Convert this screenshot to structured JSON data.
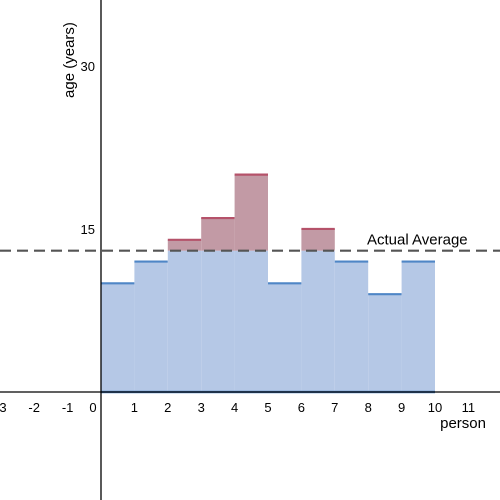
{
  "chart_data": {
    "type": "bar",
    "xlabel": "person",
    "ylabel": "age (years)",
    "xlim": [
      -3,
      12
    ],
    "ylim": [
      -10,
      36
    ],
    "x_ticks": [
      "-3",
      "-2",
      "-1",
      "0",
      "1",
      "2",
      "3",
      "4",
      "5",
      "6",
      "7",
      "8",
      "9",
      "10",
      "11"
    ],
    "y_ticks": [
      "15",
      "30"
    ],
    "x": [
      1,
      2,
      3,
      4,
      5,
      6,
      7,
      8,
      9,
      10
    ],
    "values": [
      10,
      12,
      14,
      16,
      20,
      10,
      15,
      12,
      9,
      12
    ],
    "average": {
      "value": 13,
      "label": "Actual Average"
    },
    "colors": {
      "below_fill": "#b5c8e6",
      "below_line": "#4f86c6",
      "excess_fill": "#c29aa5",
      "excess_line": "#b5526a",
      "average_line": "#555555",
      "axis": "#000000"
    }
  }
}
